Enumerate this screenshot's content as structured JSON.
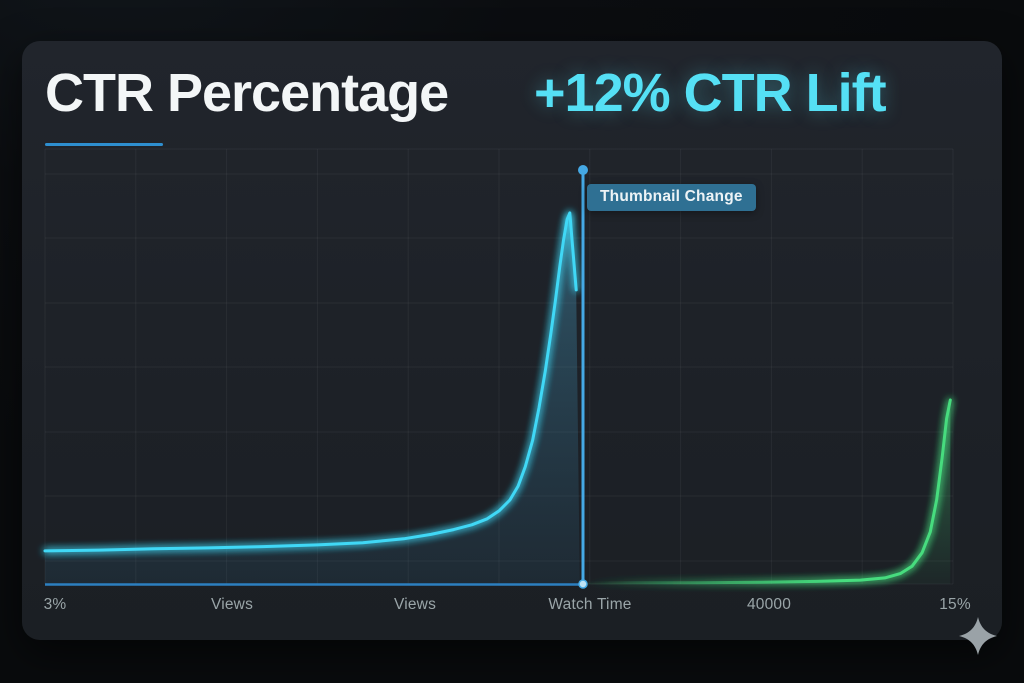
{
  "header": {
    "title": "CTR Percentage",
    "lift_badge": "+12% CTR Lift"
  },
  "colors": {
    "background": "#0b0d10",
    "card": "#1e2228",
    "title_text": "#f3f6f7",
    "title_underline": "#2e8fd0",
    "lift_text": "#55e0f5",
    "grid": "rgba(255,255,255,0.05)",
    "axis_line_blue": "#2c7fc0",
    "marker_blue": "#45a9e5",
    "tooltip_bg": "#2f7093",
    "axis_label": "#9aa5a8",
    "sparkle_gray": "#9aa2a7"
  },
  "chart_data": {
    "type": "line",
    "title": "CTR Percentage",
    "subtitle": "+12% CTR Lift",
    "annotation": {
      "text": "Thumbnail Change",
      "x": 0.5925
    },
    "x_tick_labels": [
      "3%",
      "Views",
      "Views",
      "Watch Time",
      "40000",
      "15%"
    ],
    "y_axis_visible": false,
    "ylim": [
      0,
      1
    ],
    "grid": true,
    "units_note": "points are [fraction of x-axis, fraction of plot height above baseline]",
    "series": [
      {
        "name": "ctr-before-thumbnail-change",
        "color": "#3fd8f6",
        "fill_top": "rgba(86,196,236,0.40)",
        "fill_bottom": "rgba(52,120,160,0.12)",
        "points": [
          [
            0.0,
            0.076
          ],
          [
            0.06,
            0.078
          ],
          [
            0.12,
            0.081
          ],
          [
            0.18,
            0.083
          ],
          [
            0.24,
            0.086
          ],
          [
            0.3,
            0.09
          ],
          [
            0.35,
            0.095
          ],
          [
            0.395,
            0.104
          ],
          [
            0.425,
            0.114
          ],
          [
            0.45,
            0.125
          ],
          [
            0.47,
            0.136
          ],
          [
            0.487,
            0.15
          ],
          [
            0.5,
            0.168
          ],
          [
            0.512,
            0.193
          ],
          [
            0.521,
            0.225
          ],
          [
            0.529,
            0.27
          ],
          [
            0.537,
            0.33
          ],
          [
            0.544,
            0.405
          ],
          [
            0.551,
            0.49
          ],
          [
            0.557,
            0.575
          ],
          [
            0.562,
            0.65
          ],
          [
            0.567,
            0.73
          ],
          [
            0.571,
            0.79
          ],
          [
            0.575,
            0.838
          ],
          [
            0.578,
            0.853
          ],
          [
            0.581,
            0.778
          ],
          [
            0.585,
            0.676
          ]
        ],
        "fill_close_x": 0.589
      },
      {
        "name": "ctr-after-thumbnail-change",
        "color": "#46dc7e",
        "fill_top": "rgba(74,222,128,0.38)",
        "fill_bottom": "rgba(74,222,128,0.04)",
        "fade_in": true,
        "points": [
          [
            0.593,
            0.002
          ],
          [
            0.65,
            0.003
          ],
          [
            0.72,
            0.003
          ],
          [
            0.79,
            0.004
          ],
          [
            0.85,
            0.006
          ],
          [
            0.898,
            0.009
          ],
          [
            0.925,
            0.014
          ],
          [
            0.942,
            0.024
          ],
          [
            0.955,
            0.041
          ],
          [
            0.966,
            0.072
          ],
          [
            0.975,
            0.12
          ],
          [
            0.982,
            0.194
          ],
          [
            0.988,
            0.29
          ],
          [
            0.993,
            0.38
          ],
          [
            0.997,
            0.423
          ]
        ],
        "fill_close_x": 0.997
      }
    ]
  }
}
